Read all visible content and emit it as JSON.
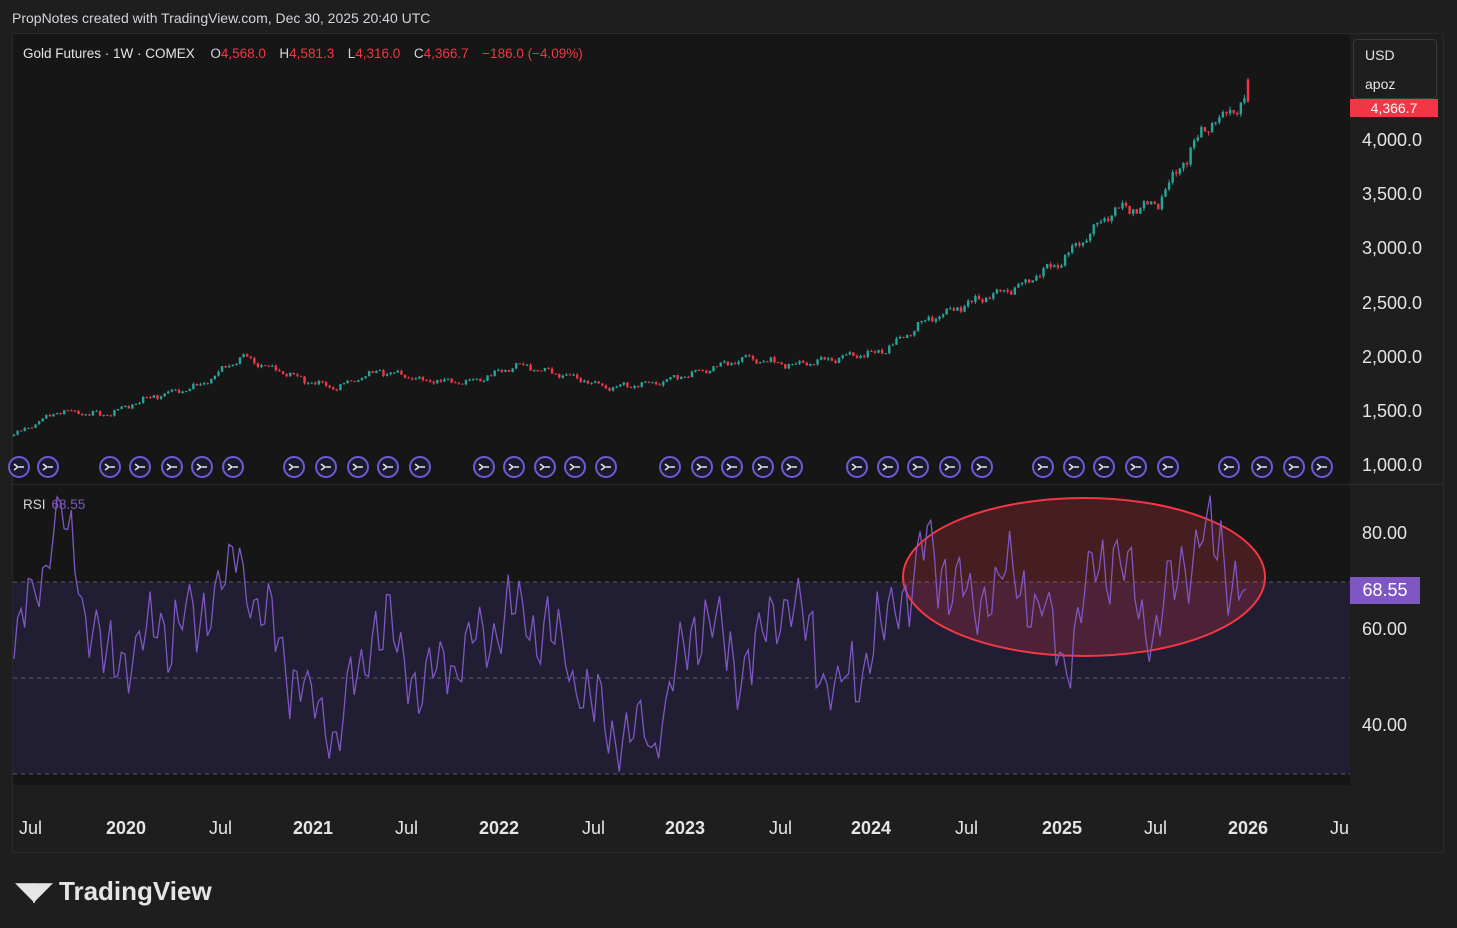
{
  "header": {
    "attribution": "PropNotes created with TradingView.com, Dec 30, 2025 20:40 UTC"
  },
  "legend": {
    "symbol": "Gold Futures · 1W · COMEX",
    "o_label": "O",
    "o_value": "4,568.0",
    "h_label": "H",
    "h_value": "4,581.3",
    "l_label": "L",
    "l_value": "4,316.0",
    "c_label": "C",
    "c_value": "4,366.7",
    "change": "−186.0 (−4.09%)"
  },
  "currency_box": {
    "currency": "USD",
    "user": "apoz"
  },
  "price_tag": "4,366.7",
  "rsi": {
    "label": "RSI",
    "value": "68.55"
  },
  "colors": {
    "up": "#26a69a",
    "down": "#f23645",
    "rsi_line": "#7e57c2",
    "highlight": "#f23645"
  },
  "brand": {
    "logo_icon": "tradingview-logo-icon",
    "name": "TradingView"
  },
  "chart_data": [
    {
      "type": "candlestick",
      "title": "Gold Futures · 1W · COMEX",
      "ylim": [
        1000,
        4650
      ],
      "y_ticks": [
        "1,000.0",
        "1,500.0",
        "2,000.0",
        "2,500.0",
        "3,000.0",
        "3,500.0",
        "4,000.0"
      ],
      "x_ticks": [
        "Jul",
        "2020",
        "Jul",
        "2021",
        "Jul",
        "2022",
        "Jul",
        "2023",
        "Jul",
        "2024",
        "Jul",
        "2025",
        "Jul",
        "2026",
        "Ju"
      ],
      "x": [
        "2019-05",
        "2019-08",
        "2019-11",
        "2020-02",
        "2020-05",
        "2020-08",
        "2020-11",
        "2021-02",
        "2021-05",
        "2021-08",
        "2021-11",
        "2022-02",
        "2022-05",
        "2022-08",
        "2022-11",
        "2023-02",
        "2023-05",
        "2023-08",
        "2023-11",
        "2024-02",
        "2024-05",
        "2024-08",
        "2024-11",
        "2025-02",
        "2025-05",
        "2025-08",
        "2025-11",
        "2025-12"
      ],
      "close": [
        1290,
        1510,
        1470,
        1640,
        1730,
        2010,
        1840,
        1720,
        1880,
        1790,
        1780,
        1930,
        1850,
        1720,
        1760,
        1870,
        2000,
        1930,
        2000,
        2060,
        2350,
        2520,
        2660,
        2920,
        3350,
        3420,
        4100,
        4366.7
      ]
    },
    {
      "type": "line",
      "title": "RSI",
      "ylim": [
        20,
        90
      ],
      "y_ticks": [
        "40.00",
        "60.00",
        "80.00"
      ],
      "bands": [
        30,
        50,
        70
      ],
      "x": [
        "2019-05",
        "2019-08",
        "2019-11",
        "2020-02",
        "2020-05",
        "2020-08",
        "2020-11",
        "2021-02",
        "2021-05",
        "2021-08",
        "2021-11",
        "2022-02",
        "2022-05",
        "2022-08",
        "2022-11",
        "2023-02",
        "2023-05",
        "2023-08",
        "2023-11",
        "2024-02",
        "2024-05",
        "2024-08",
        "2024-11",
        "2025-02",
        "2025-05",
        "2025-08",
        "2025-11",
        "2025-12"
      ],
      "values": [
        55,
        84,
        52,
        60,
        62,
        74,
        52,
        38,
        62,
        47,
        58,
        66,
        56,
        39,
        36,
        64,
        52,
        69,
        46,
        60,
        76,
        66,
        72,
        55,
        77,
        60,
        82,
        68.55
      ],
      "last_value": 68.55
    }
  ]
}
